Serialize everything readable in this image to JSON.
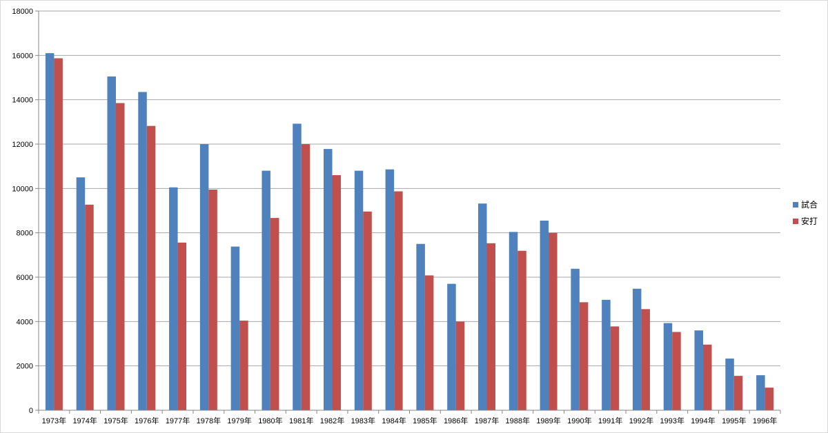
{
  "chart_data": {
    "type": "bar",
    "title": "",
    "xlabel": "",
    "ylabel": "",
    "ylim": [
      0,
      18000
    ],
    "yticks": [
      0,
      2000,
      4000,
      6000,
      8000,
      10000,
      12000,
      14000,
      16000,
      18000
    ],
    "grid": true,
    "legend_position": "right",
    "categories": [
      "1973年",
      "1974年",
      "1975年",
      "1976年",
      "1977年",
      "1978年",
      "1979年",
      "1980年",
      "1981年",
      "1982年",
      "1983年",
      "1984年",
      "1985年",
      "1986年",
      "1987年",
      "1988年",
      "1989年",
      "1990年",
      "1991年",
      "1992年",
      "1993年",
      "1994年",
      "1995年",
      "1996年"
    ],
    "series": [
      {
        "name": "試合",
        "color": "#4F81BD",
        "values": [
          16100,
          10500,
          15050,
          14350,
          10050,
          12000,
          7380,
          10800,
          12920,
          11780,
          10800,
          10860,
          7500,
          5700,
          9320,
          8040,
          8550,
          6380,
          4980,
          5480,
          3930,
          3600,
          2330,
          1580
        ]
      },
      {
        "name": "安打",
        "color": "#C0504D",
        "values": [
          15870,
          9270,
          13850,
          12820,
          7560,
          9950,
          4040,
          8670,
          12000,
          10600,
          8960,
          9870,
          6080,
          4000,
          7530,
          7190,
          8000,
          4870,
          3780,
          4560,
          3530,
          2960,
          1550,
          1020
        ]
      }
    ]
  }
}
